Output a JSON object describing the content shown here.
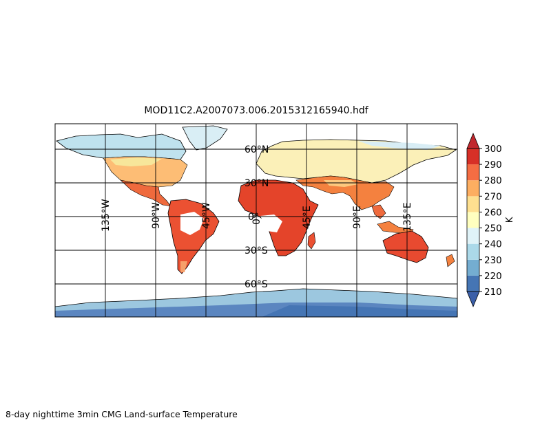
{
  "title": "MOD11C2.A2007073.006.2015312165940.hdf",
  "caption": "8-day nighttime 3min CMG Land-surface Temperature",
  "map": {
    "projection": "cylindrical",
    "lat_range": [
      -90,
      90
    ],
    "lon_range": [
      -180,
      180
    ],
    "parallels": [
      60,
      30,
      0,
      -30,
      -60
    ],
    "meridians": [
      -135,
      -90,
      -45,
      0,
      45,
      90,
      135
    ],
    "lat_labels": [
      "60°N",
      "30°N",
      "0°",
      "30°S",
      "60°S"
    ],
    "lon_labels": [
      "135°W",
      "90°W",
      "45°W",
      "0°",
      "45°E",
      "90°E",
      "135°E"
    ]
  },
  "colorbar": {
    "unit": "K",
    "ticks": [
      "300",
      "290",
      "280",
      "270",
      "260",
      "250",
      "240",
      "230",
      "220",
      "210"
    ],
    "extend": "both",
    "colors": [
      "#4575b4",
      "#74add1",
      "#abd9e9",
      "#e0f3f8",
      "#ffffbf",
      "#fee090",
      "#fdae61",
      "#f46d43",
      "#d73027"
    ],
    "under_color": "#3b5fa8",
    "over_color": "#c1272d"
  }
}
